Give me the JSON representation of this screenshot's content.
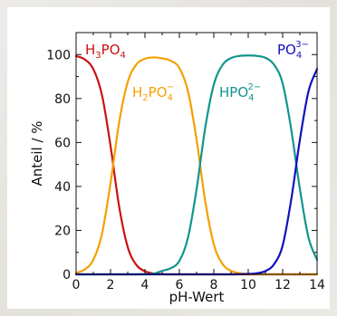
{
  "chart_data": {
    "type": "line",
    "xlabel": "pH-Wert",
    "ylabel": "Anteil / %",
    "xlim": [
      0,
      14
    ],
    "ylim": [
      0,
      110
    ],
    "xticks": [
      0,
      2,
      4,
      6,
      8,
      10,
      12,
      14
    ],
    "yticks": [
      0,
      20,
      40,
      60,
      80,
      100
    ],
    "grid": false,
    "pKa": [
      2.15,
      7.2,
      12.35
    ],
    "x": [
      0,
      0.5,
      1,
      1.5,
      2,
      2.5,
      3,
      3.5,
      4,
      4.5,
      5,
      5.5,
      6,
      6.5,
      7,
      7.5,
      8,
      8.5,
      9,
      9.5,
      10,
      10.5,
      11,
      11.5,
      12,
      12.5,
      13,
      13.5,
      14
    ],
    "series": [
      {
        "name": "H3PO4",
        "label_main": "H",
        "label_sub1": "3",
        "label_mid": "PO",
        "label_sub2": "4",
        "label_sup": "",
        "color": "#cc1111",
        "values": [
          99.3,
          97.8,
          93.4,
          81.7,
          58.5,
          30.9,
          12.4,
          4.3,
          1.4,
          0.4,
          0.1,
          0,
          0,
          0,
          0,
          0,
          0,
          0,
          0,
          0,
          0,
          0,
          0,
          0,
          0,
          0,
          0,
          0,
          0
        ]
      },
      {
        "name": "H2PO4-",
        "label_main": "H",
        "label_sub1": "2",
        "label_mid": "PO",
        "label_sub2": "4",
        "label_sup": "−",
        "color": "#f5a000",
        "values": [
          0.7,
          2.2,
          6.6,
          18.3,
          41.5,
          69.1,
          87.5,
          95.5,
          98.1,
          98.7,
          98.3,
          97.2,
          93.9,
          83.3,
          61.3,
          33.4,
          13.7,
          4.8,
          1.6,
          0.5,
          0.2,
          0.1,
          0,
          0,
          0,
          0,
          0,
          0,
          0
        ]
      },
      {
        "name": "HPO4 2-",
        "label_main": "HPO",
        "label_sub1": "",
        "label_mid": "",
        "label_sub2": "4",
        "label_sup": "2−",
        "color": "#11958f",
        "values": [
          0,
          0,
          0,
          0,
          0,
          0,
          0,
          0,
          0.1,
          0.3,
          1.6,
          2.8,
          6.1,
          16.7,
          38.7,
          66.6,
          86.3,
          95.2,
          98.4,
          99.4,
          99.6,
          99.4,
          98.5,
          95.4,
          86.9,
          65.9,
          38.9,
          16.8,
          6.6
        ]
      },
      {
        "name": "PO4 3-",
        "label_main": "PO",
        "label_sub1": "",
        "label_mid": "",
        "label_sub2": "4",
        "label_sup": "3−",
        "color": "#1010c0",
        "values": [
          0,
          0,
          0,
          0,
          0,
          0,
          0,
          0,
          0,
          0,
          0,
          0,
          0,
          0,
          0,
          0,
          0,
          0,
          0,
          0.1,
          0.2,
          0.5,
          1.5,
          4.6,
          13.1,
          34.1,
          61.1,
          83.2,
          93.4
        ]
      }
    ]
  }
}
